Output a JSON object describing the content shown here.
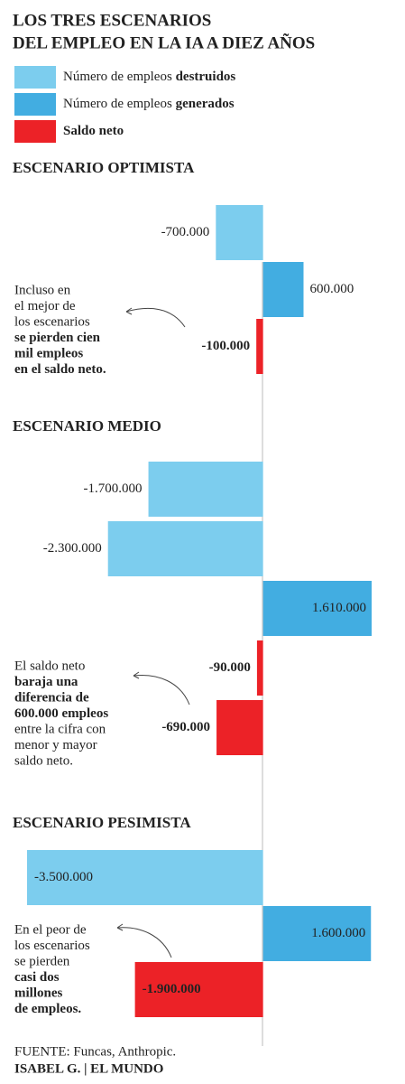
{
  "chart_data": {
    "type": "bar",
    "orientation": "horizontal",
    "title_lines": [
      "LOS TRES ESCENARIOS",
      "DEL EMPLEO EN LA IA A DIEZ AÑOS"
    ],
    "legend": [
      {
        "name": "Número de empleos ",
        "name_bold": "destruidos",
        "color": "#7ccdee"
      },
      {
        "name": "Número de empleos ",
        "name_bold": "generados",
        "color": "#42ade1"
      },
      {
        "name_bold": "Saldo neto",
        "color": "#ec2227"
      }
    ],
    "xlim": [
      -3500000,
      1610000
    ],
    "panels": [
      {
        "title": "ESCENARIO OPTIMISTA",
        "values": [
          -700000,
          600000,
          -100000
        ],
        "value_labels": [
          "-700.000",
          "600.000",
          "-100.000"
        ],
        "colors": [
          "#7ccdee",
          "#42ade1",
          "#ec2227"
        ],
        "note": [
          "Incluso en",
          "el mejor de",
          "los escenarios",
          {
            "text": "se pierden cien",
            "bold": true
          },
          {
            "text": "mil empleos",
            "bold": true
          },
          {
            "text": "en el saldo neto.",
            "bold": true
          }
        ]
      },
      {
        "title": "ESCENARIO MEDIO",
        "values": [
          -1700000,
          -2300000,
          1610000,
          -90000,
          -690000
        ],
        "value_labels": [
          "-1.700.000",
          "-2.300.000",
          "1.610.000",
          "-90.000",
          "-690.000"
        ],
        "colors": [
          "#7ccdee",
          "#7ccdee",
          "#42ade1",
          "#ec2227",
          "#ec2227"
        ],
        "note": [
          "El saldo neto",
          {
            "text": "baraja una",
            "bold": true
          },
          {
            "text": "diferencia de",
            "bold": true
          },
          {
            "text": "600.000 empleos",
            "bold": true
          },
          "entre la cifra con",
          "menor y mayor",
          "saldo neto."
        ]
      },
      {
        "title": "ESCENARIO PESIMISTA",
        "values": [
          -3500000,
          1600000,
          -1900000
        ],
        "value_labels": [
          "-3.500.000",
          "1.600.000",
          "-1.900.000"
        ],
        "colors": [
          "#7ccdee",
          "#42ade1",
          "#ec2227"
        ],
        "note": [
          "En el peor de",
          "los escenarios",
          "se pierden",
          {
            "text": "casi dos",
            "bold": true
          },
          {
            "text": "millones",
            "bold": true
          },
          {
            "text": "de empleos.",
            "bold": true
          }
        ]
      }
    ],
    "source": "FUENTE: Funcas, Anthropic.",
    "credit": "ISABEL G. | EL MUNDO"
  }
}
